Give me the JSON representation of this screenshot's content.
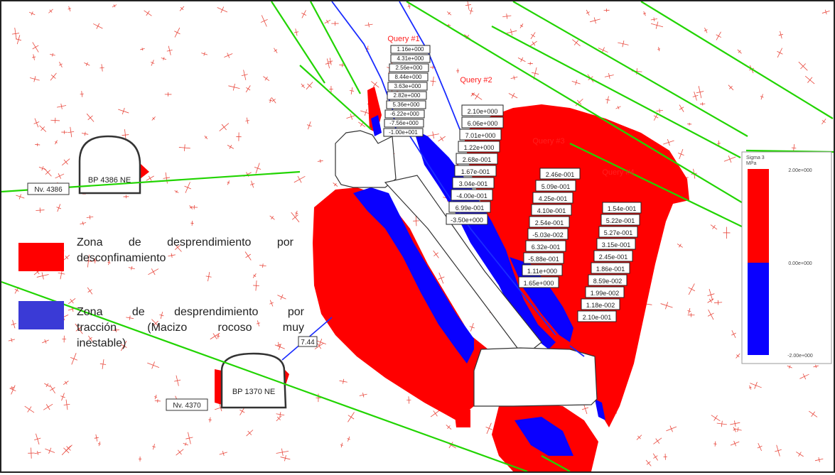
{
  "colors": {
    "red": "#ff0000",
    "blue": "#0a00ff",
    "green": "#21d400",
    "legend_blue": "#3a3ad6",
    "cross": "#e8473c"
  },
  "queries": [
    {
      "label": "Query #1",
      "values": [
        "1.16e+000",
        "4.31e+000",
        "2.56e+000",
        "8.44e+000",
        "3.63e+000",
        "2.82e+000",
        "5.36e+000",
        "-6.22e+000",
        "-7.56e+000",
        "-1.00e+001"
      ]
    },
    {
      "label": "Query #2",
      "values": [
        "2.10e+000",
        "6.06e+000",
        "7.01e+000",
        "1.22e+000",
        "2.68e-001",
        "1.67e-001",
        "3.04e-001",
        "-4.00e-001",
        "6.99e-001",
        "-3.50e+000"
      ]
    },
    {
      "label": "Query #3",
      "values": [
        "2.46e-001",
        "5.09e-001",
        "4.25e-001",
        "4.10e-001",
        "2.54e-001",
        "-5.03e-002",
        "6.32e-001",
        "-5.88e-001",
        "1.11e+000",
        "1.65e+000"
      ]
    },
    {
      "label": "Query #4",
      "values": [
        "1.54e-001",
        "5.22e-001",
        "5.27e-001",
        "3.15e-001",
        "2.45e-001",
        "1.86e-001",
        "8.59e-002",
        "1.99e-002",
        "1.18e-002",
        "2.10e-001"
      ]
    }
  ],
  "tunnels": [
    {
      "name": "BP 4386 NE",
      "level": "Nv. 4386"
    },
    {
      "name": "BP 1370 NE",
      "level": "Nv. 4370"
    }
  ],
  "distance_label": "7.44",
  "legend": [
    {
      "color": "red",
      "lines": [
        "Zona de desprendimiento por",
        "desconfinamiento"
      ]
    },
    {
      "color": "blue",
      "lines": [
        "Zona de desprendimiento por",
        "tracción (Macizo rocoso muy",
        "inestable)"
      ]
    }
  ],
  "colorbar": {
    "title": "Sigma 3",
    "unit": "MPa",
    "ticks": [
      "2.00e+000",
      "0.00e+000",
      "-2.00e+000"
    ]
  }
}
